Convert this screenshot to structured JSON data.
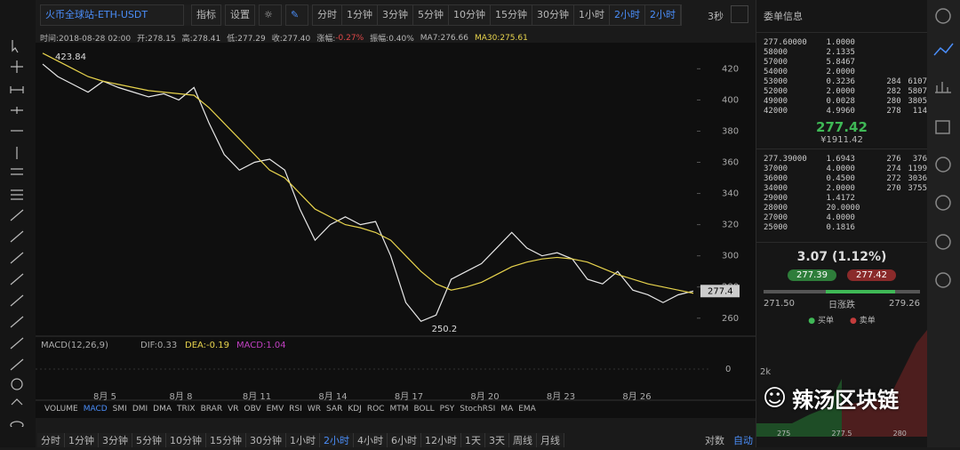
{
  "toolbar": {
    "pair": "火币全球站-ETH-USDT",
    "indicator": "指标",
    "settings": "设置",
    "periods": [
      "分时",
      "1分钟",
      "3分钟",
      "5分钟",
      "10分钟",
      "15分钟",
      "30分钟",
      "1小时",
      "2小时",
      "2小时"
    ],
    "refresh": "3秒"
  },
  "info": [
    "时间:2018-08-28 02:00",
    "开:278.15",
    "高:278.41",
    "低:277.29",
    "收:277.40",
    "涨幅:",
    "-0.27%",
    "振幅:0.40%",
    "MA7:276.66",
    "MA30:275.61"
  ],
  "chart_data": {
    "type": "line",
    "ylim": [
      249.6,
      435.6
    ],
    "yticks": [
      260,
      280,
      300,
      320,
      340,
      360,
      380,
      400,
      420
    ],
    "x_labels": [
      "8月 5",
      "8月 8",
      "8月 11",
      "8月 14",
      "8月 17",
      "8月 20",
      "8月 23",
      "8月 26"
    ],
    "series": [
      {
        "name": "close",
        "color": "#e8e8e8",
        "values": [
          423,
          415,
          410,
          405,
          412,
          408,
          405,
          402,
          404,
          400,
          408,
          385,
          365,
          355,
          360,
          362,
          355,
          330,
          310,
          320,
          325,
          320,
          322,
          300,
          270,
          258,
          262,
          285,
          290,
          295,
          305,
          315,
          305,
          300,
          302,
          298,
          285,
          282,
          290,
          278,
          275,
          270,
          275,
          277.4
        ]
      },
      {
        "name": "MA30",
        "color": "#e8d44d",
        "values": [
          430,
          425,
          420,
          415,
          412,
          410,
          408,
          406,
          405,
          404,
          403,
          395,
          385,
          375,
          365,
          355,
          350,
          340,
          330,
          325,
          320,
          318,
          315,
          310,
          300,
          290,
          282,
          278,
          280,
          283,
          288,
          293,
          296,
          298,
          299,
          298,
          296,
          292,
          288,
          285,
          282,
          280,
          278,
          276
        ]
      }
    ],
    "high_label": "423.84",
    "low_label": "250.2",
    "last_price": "277.4"
  },
  "macd": {
    "title": "MACD(12,26,9)",
    "dif": "DIF:0.33",
    "dea": "DEA:-0.19",
    "macd": "MACD:1.04",
    "zero": "0"
  },
  "indicators": [
    "VOLUME",
    "MACD",
    "SMI",
    "DMI",
    "DMA",
    "TRIX",
    "BRAR",
    "VR",
    "OBV",
    "EMV",
    "RSI",
    "WR",
    "SAR",
    "KDJ",
    "ROC",
    "MTM",
    "BOLL",
    "PSY",
    "StochRSI",
    "MA",
    "EMA"
  ],
  "timeframes": [
    "分时",
    "1分钟",
    "3分钟",
    "5分钟",
    "10分钟",
    "15分钟",
    "30分钟",
    "1小时",
    "2小时",
    "4小时",
    "6小时",
    "12小时",
    "1天",
    "3天",
    "周线",
    "月线"
  ],
  "scale_options": [
    "对数",
    "自动"
  ],
  "orderbook": {
    "title": "委单信息",
    "asks": [
      [
        "277.60000",
        "1.0000",
        "",
        ""
      ],
      [
        "58000",
        "2.1335",
        "",
        ""
      ],
      [
        "57000",
        "5.8467",
        "",
        ""
      ],
      [
        "54000",
        "2.0000",
        "",
        ""
      ],
      [
        "53000",
        "0.3236",
        "284",
        "6107"
      ],
      [
        "52000",
        "2.0000",
        "282",
        "5807"
      ],
      [
        "49000",
        "0.0028",
        "280",
        "3805"
      ],
      [
        "42000",
        "4.9960",
        "278",
        "114"
      ]
    ],
    "mid": "277.42",
    "mid_cny": "¥1911.42",
    "bids": [
      [
        "277.39000",
        "1.6943",
        "276",
        "376"
      ],
      [
        "37000",
        "4.0000",
        "274",
        "1199"
      ],
      [
        "36000",
        "0.4500",
        "272",
        "3036"
      ],
      [
        "34000",
        "2.0000",
        "270",
        "3755"
      ],
      [
        "29000",
        "1.4172",
        "",
        ""
      ],
      [
        "28000",
        "20.0000",
        "",
        ""
      ],
      [
        "27000",
        "4.0000",
        "",
        ""
      ],
      [
        "25000",
        "0.1816",
        "",
        ""
      ]
    ]
  },
  "ticker": {
    "change": "3.07 (1.12%)",
    "bid": "277.39",
    "ask": "277.42",
    "low": "271.50",
    "range_label": "日涨跌",
    "high": "279.26",
    "buy": "买单",
    "sell": "卖单",
    "depth_y": "2k",
    "depth_x": [
      "275",
      "277.5",
      "280"
    ]
  },
  "watermark": "辣汤区块链"
}
